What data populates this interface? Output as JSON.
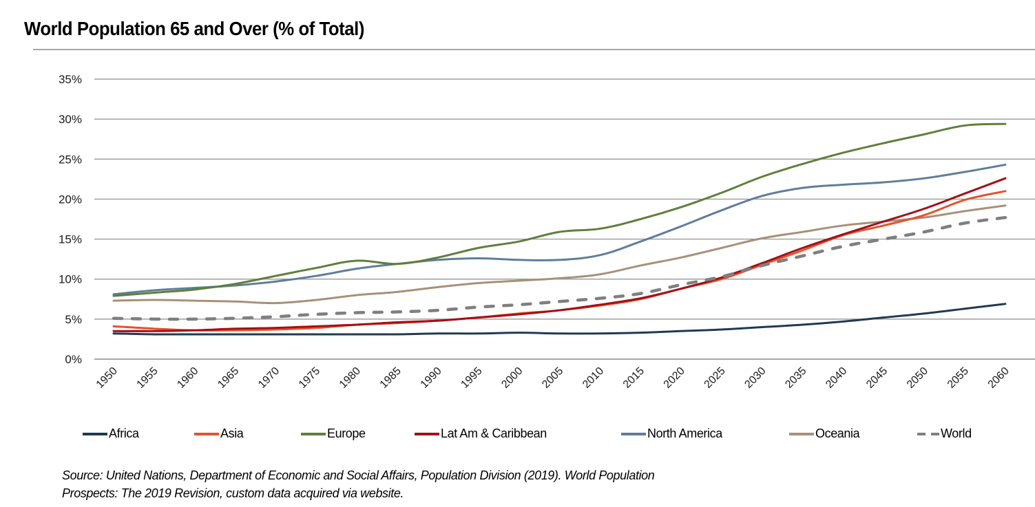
{
  "header": {
    "title": "World Population 65 and Over (% of Total)"
  },
  "chart_data": {
    "type": "line",
    "title": "World Population 65 and Over (% of Total)",
    "xlabel": "",
    "ylabel": "",
    "ylim": [
      0,
      35
    ],
    "yticks": [
      0,
      5,
      10,
      15,
      20,
      25,
      30,
      35
    ],
    "ytick_labels": [
      "0%",
      "5%",
      "10%",
      "15%",
      "20%",
      "25%",
      "30%",
      "35%"
    ],
    "grid": true,
    "legend_position": "bottom",
    "x": [
      "1950",
      "1955",
      "1960",
      "1965",
      "1970",
      "1975",
      "1980",
      "1985",
      "1990",
      "1995",
      "2000",
      "2005",
      "2010",
      "2015",
      "2020",
      "2025",
      "2030",
      "2035",
      "2040",
      "2045",
      "2050",
      "2055",
      "2060"
    ],
    "series": [
      {
        "name": "Africa",
        "color": "#1f3a52",
        "dashed": false,
        "values": [
          3.2,
          3.1,
          3.1,
          3.1,
          3.1,
          3.1,
          3.1,
          3.1,
          3.2,
          3.2,
          3.3,
          3.2,
          3.2,
          3.3,
          3.5,
          3.7,
          4.0,
          4.3,
          4.7,
          5.2,
          5.7,
          6.3,
          6.9
        ]
      },
      {
        "name": "Asia",
        "color": "#e5532a",
        "dashed": false,
        "values": [
          4.1,
          3.8,
          3.6,
          3.6,
          3.7,
          3.9,
          4.3,
          4.5,
          4.8,
          5.2,
          5.7,
          6.1,
          6.7,
          7.5,
          8.8,
          10.0,
          11.8,
          13.6,
          15.5,
          16.7,
          18.0,
          19.9,
          21.0
        ]
      },
      {
        "name": "Europe",
        "color": "#5f7f3a",
        "dashed": false,
        "values": [
          7.9,
          8.3,
          8.7,
          9.4,
          10.4,
          11.4,
          12.3,
          11.9,
          12.7,
          13.9,
          14.7,
          15.9,
          16.3,
          17.5,
          19.0,
          20.8,
          22.8,
          24.4,
          25.8,
          27.0,
          28.1,
          29.2,
          29.4
        ]
      },
      {
        "name": "Lat Am & Caribbean",
        "color": "#a50f15",
        "dashed": false,
        "values": [
          3.5,
          3.5,
          3.6,
          3.8,
          3.9,
          4.1,
          4.3,
          4.6,
          4.8,
          5.2,
          5.6,
          6.1,
          6.8,
          7.6,
          8.8,
          10.2,
          12.0,
          13.9,
          15.6,
          17.2,
          18.8,
          20.7,
          22.6
        ]
      },
      {
        "name": "North America",
        "color": "#5f7d9c",
        "dashed": false,
        "values": [
          8.1,
          8.6,
          8.9,
          9.2,
          9.7,
          10.4,
          11.3,
          11.9,
          12.4,
          12.6,
          12.4,
          12.4,
          13.0,
          14.7,
          16.6,
          18.6,
          20.4,
          21.4,
          21.8,
          22.1,
          22.6,
          23.4,
          24.3
        ]
      },
      {
        "name": "Oceania",
        "color": "#a89078",
        "dashed": false,
        "values": [
          7.3,
          7.4,
          7.3,
          7.2,
          7.0,
          7.4,
          8.0,
          8.4,
          9.0,
          9.5,
          9.8,
          10.1,
          10.6,
          11.7,
          12.7,
          13.9,
          15.1,
          15.9,
          16.7,
          17.2,
          17.7,
          18.5,
          19.2
        ]
      },
      {
        "name": "World",
        "color": "#7f7f7f",
        "dashed": true,
        "values": [
          5.1,
          5.0,
          5.0,
          5.1,
          5.3,
          5.6,
          5.8,
          5.9,
          6.1,
          6.5,
          6.8,
          7.2,
          7.6,
          8.2,
          9.3,
          10.3,
          11.7,
          12.9,
          14.1,
          15.0,
          15.9,
          17.0,
          17.7
        ]
      }
    ]
  },
  "legend": [
    {
      "label": "Africa"
    },
    {
      "label": "Asia"
    },
    {
      "label": "Europe"
    },
    {
      "label": "Lat Am & Caribbean"
    },
    {
      "label": "North America"
    },
    {
      "label": "Oceania"
    },
    {
      "label": "World"
    }
  ],
  "source": {
    "line1": "Source: United Nations, Department of Economic and Social Affairs, Population Division (2019). World Population",
    "line2": "Prospects: The 2019 Revision, custom data acquired via website."
  }
}
